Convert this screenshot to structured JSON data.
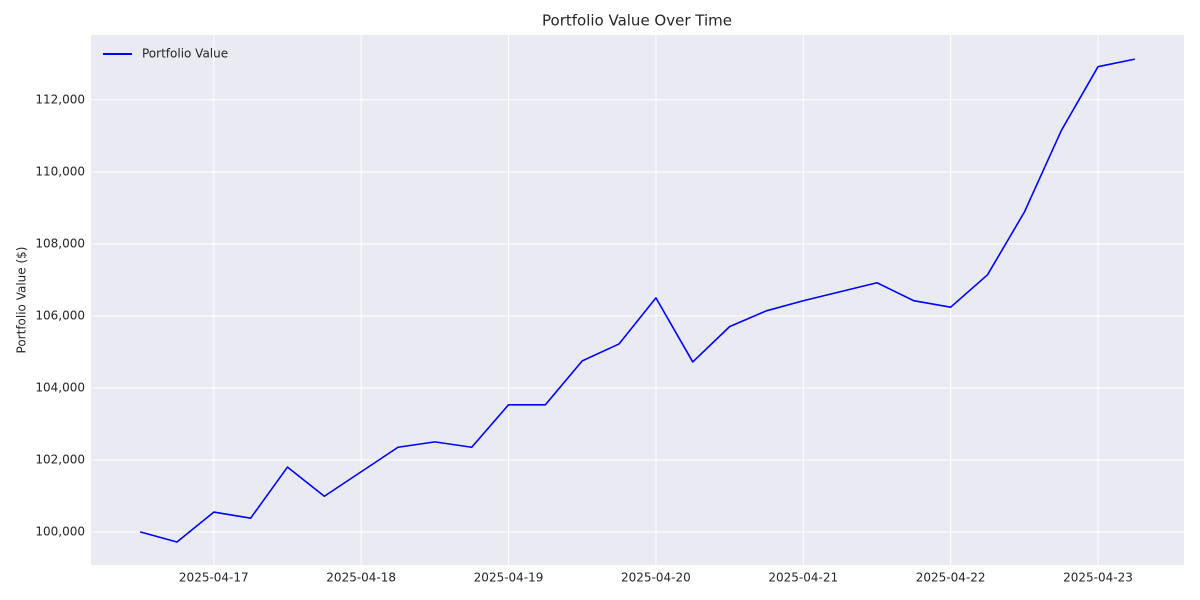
{
  "chart_data": {
    "type": "line",
    "title": "Portfolio Value Over Time",
    "ylabel": "Portfolio Value ($)",
    "x": [
      "2025-04-16T12:00",
      "2025-04-16T18:00",
      "2025-04-17T00:00",
      "2025-04-17T06:00",
      "2025-04-17T12:00",
      "2025-04-17T18:00",
      "2025-04-18T00:00",
      "2025-04-18T06:00",
      "2025-04-18T12:00",
      "2025-04-18T18:00",
      "2025-04-19T00:00",
      "2025-04-19T06:00",
      "2025-04-19T12:00",
      "2025-04-19T18:00",
      "2025-04-20T00:00",
      "2025-04-20T06:00",
      "2025-04-20T12:00",
      "2025-04-20T18:00",
      "2025-04-21T00:00",
      "2025-04-21T06:00",
      "2025-04-21T12:00",
      "2025-04-21T18:00",
      "2025-04-22T00:00",
      "2025-04-22T06:00",
      "2025-04-22T12:00",
      "2025-04-22T18:00",
      "2025-04-23T00:00",
      "2025-04-23T06:00"
    ],
    "series": [
      {
        "name": "Portfolio Value",
        "color": "#0000ff",
        "values": [
          100000,
          99720,
          100550,
          100380,
          101800,
          100990,
          101670,
          102350,
          102500,
          102350,
          103530,
          103530,
          104750,
          105220,
          106500,
          104720,
          105700,
          106140,
          106420,
          106670,
          106920,
          106420,
          106240,
          107140,
          108880,
          111140,
          112920,
          113130
        ]
      }
    ],
    "xlim": [
      "2025-04-16T04:00",
      "2025-04-23T14:00"
    ],
    "xticks": [
      "2025-04-17",
      "2025-04-18",
      "2025-04-19",
      "2025-04-20",
      "2025-04-21",
      "2025-04-22",
      "2025-04-23"
    ],
    "ylim": [
      99080,
      113800
    ],
    "yticks": [
      {
        "value": 100000,
        "label": "100,000"
      },
      {
        "value": 102000,
        "label": "102,000"
      },
      {
        "value": 104000,
        "label": "104,000"
      },
      {
        "value": 106000,
        "label": "106,000"
      },
      {
        "value": 108000,
        "label": "108,000"
      },
      {
        "value": 110000,
        "label": "110,000"
      },
      {
        "value": 112000,
        "label": "112,000"
      }
    ],
    "grid": true,
    "legend": "upper left"
  }
}
